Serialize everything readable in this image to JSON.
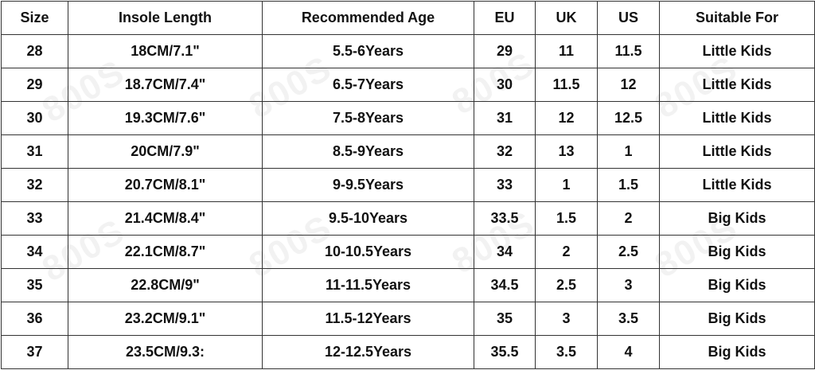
{
  "table": {
    "headers": [
      "Size",
      "Insole Length",
      "Recommended Age",
      "EU",
      "UK",
      "US",
      "Suitable For"
    ],
    "rows": [
      [
        "28",
        "18CM/7.1\"",
        "5.5-6Years",
        "29",
        "11",
        "11.5",
        "Little Kids"
      ],
      [
        "29",
        "18.7CM/7.4\"",
        "6.5-7Years",
        "30",
        "11.5",
        "12",
        "Little Kids"
      ],
      [
        "30",
        "19.3CM/7.6\"",
        "7.5-8Years",
        "31",
        "12",
        "12.5",
        "Little Kids"
      ],
      [
        "31",
        "20CM/7.9\"",
        "8.5-9Years",
        "32",
        "13",
        "1",
        "Little Kids"
      ],
      [
        "32",
        "20.7CM/8.1\"",
        "9-9.5Years",
        "33",
        "1",
        "1.5",
        "Little Kids"
      ],
      [
        "33",
        "21.4CM/8.4\"",
        "9.5-10Years",
        "33.5",
        "1.5",
        "2",
        "Big Kids"
      ],
      [
        "34",
        "22.1CM/8.7\"",
        "10-10.5Years",
        "34",
        "2",
        "2.5",
        "Big Kids"
      ],
      [
        "35",
        "22.8CM/9\"",
        "11-11.5Years",
        "34.5",
        "2.5",
        "3",
        "Big Kids"
      ],
      [
        "36",
        "23.2CM/9.1\"",
        "11.5-12Years",
        "35",
        "3",
        "3.5",
        "Big Kids"
      ],
      [
        "37",
        "23.5CM/9.3:",
        "12-12.5Years",
        "35.5",
        "3.5",
        "4",
        "Big Kids"
      ]
    ]
  },
  "watermark": "800S",
  "colors": {
    "grid": "#333333",
    "text": "#111111",
    "background": "#ffffff"
  }
}
